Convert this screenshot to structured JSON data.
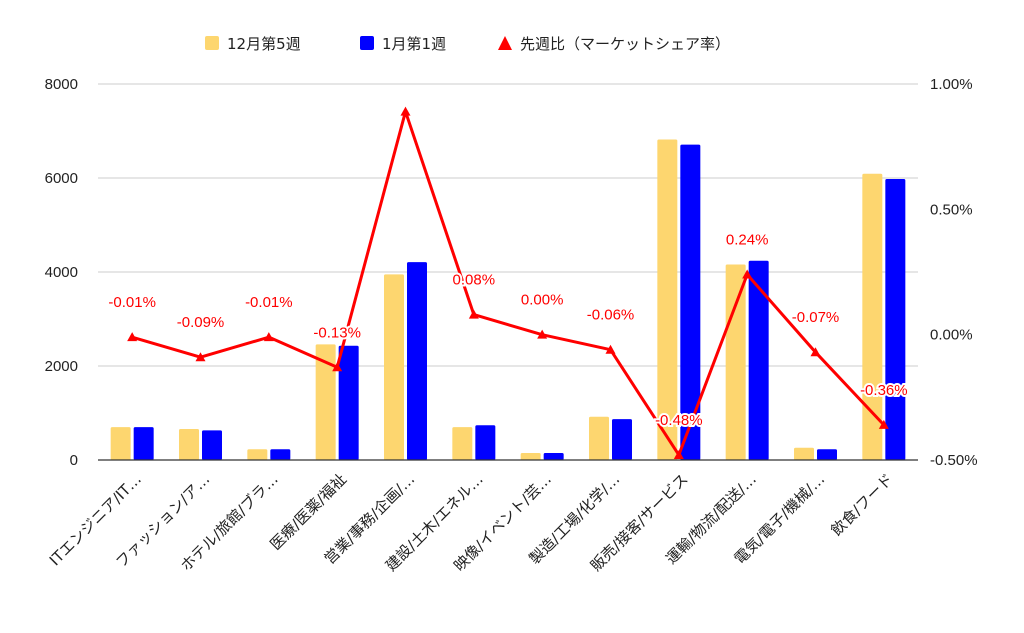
{
  "chart_data": {
    "type": "bar",
    "categories": [
      "ITエンジニア/IT…",
      "ファッション/ア…",
      "ホテル/旅館/ブラ…",
      "医療/医薬/福祉",
      "営業/事務/企画/…",
      "建設/土木/エネル…",
      "映像/イベント/芸…",
      "製造/工場/化学/…",
      "販売/接客/サービス",
      "運輸/物流/配送/…",
      "電気/電子/機械/…",
      "飲食/フード"
    ],
    "series": [
      {
        "name": "12月第5週",
        "type": "bar",
        "axis": "left",
        "color": "#FDD66F",
        "values": [
          700,
          660,
          230,
          2460,
          3950,
          700,
          150,
          920,
          6820,
          4160,
          260,
          6090
        ]
      },
      {
        "name": "1月第1週",
        "type": "bar",
        "axis": "left",
        "color": "#0000FF",
        "values": [
          700,
          630,
          230,
          2430,
          4210,
          740,
          150,
          870,
          6710,
          4240,
          230,
          5980
        ]
      },
      {
        "name": "先週比（マーケットシェア率）",
        "type": "line",
        "axis": "right",
        "color": "#FF0000",
        "values": [
          -0.01,
          -0.09,
          -0.01,
          -0.13,
          0.89,
          0.08,
          0.0,
          -0.06,
          -0.48,
          0.24,
          -0.07,
          -0.36
        ],
        "labels": [
          "-0.01%",
          "-0.09%",
          "-0.01%",
          "-0.13%",
          "",
          "0.08%",
          "0.00%",
          "-0.06%",
          "-0.48%",
          "0.24%",
          "-0.07%",
          "-0.36%"
        ]
      }
    ],
    "y_left": {
      "min": 0,
      "max": 8000,
      "ticks": [
        0,
        2000,
        4000,
        6000,
        8000
      ],
      "tick_labels": [
        "0",
        "2000",
        "4000",
        "6000",
        "8000"
      ]
    },
    "y_right": {
      "min": -0.5,
      "max": 1.0,
      "ticks": [
        -0.5,
        0.0,
        0.5,
        1.0
      ],
      "tick_labels": [
        "-0.50%",
        "0.00%",
        "0.50%",
        "1.00%"
      ]
    },
    "grid": true,
    "legend_position": "top"
  }
}
